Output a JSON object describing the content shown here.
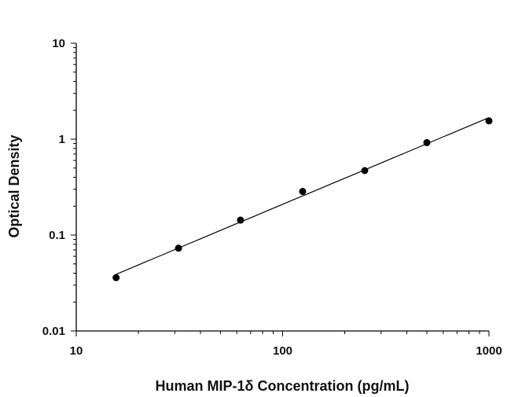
{
  "chart_data": {
    "type": "scatter",
    "title": "",
    "xlabel": "Human MIP-1δ Concentration (pg/mL)",
    "ylabel": "Optical Density",
    "xscale": "log",
    "yscale": "log",
    "xlim": [
      10,
      1000
    ],
    "ylim": [
      0.01,
      10
    ],
    "grid": false,
    "legend": "none",
    "x_tick_labels": [
      "10",
      "100",
      "1000"
    ],
    "y_tick_labels": [
      "0.01",
      "0.1",
      "1",
      "10"
    ],
    "series": [
      {
        "points": [
          {
            "x": 15.6,
            "y": 0.036
          },
          {
            "x": 31.3,
            "y": 0.073
          },
          {
            "x": 62.5,
            "y": 0.143
          },
          {
            "x": 125,
            "y": 0.285
          },
          {
            "x": 250,
            "y": 0.47
          },
          {
            "x": 500,
            "y": 0.92
          },
          {
            "x": 1000,
            "y": 1.55
          }
        ],
        "fit_curve": true,
        "color": "#000000"
      }
    ]
  }
}
